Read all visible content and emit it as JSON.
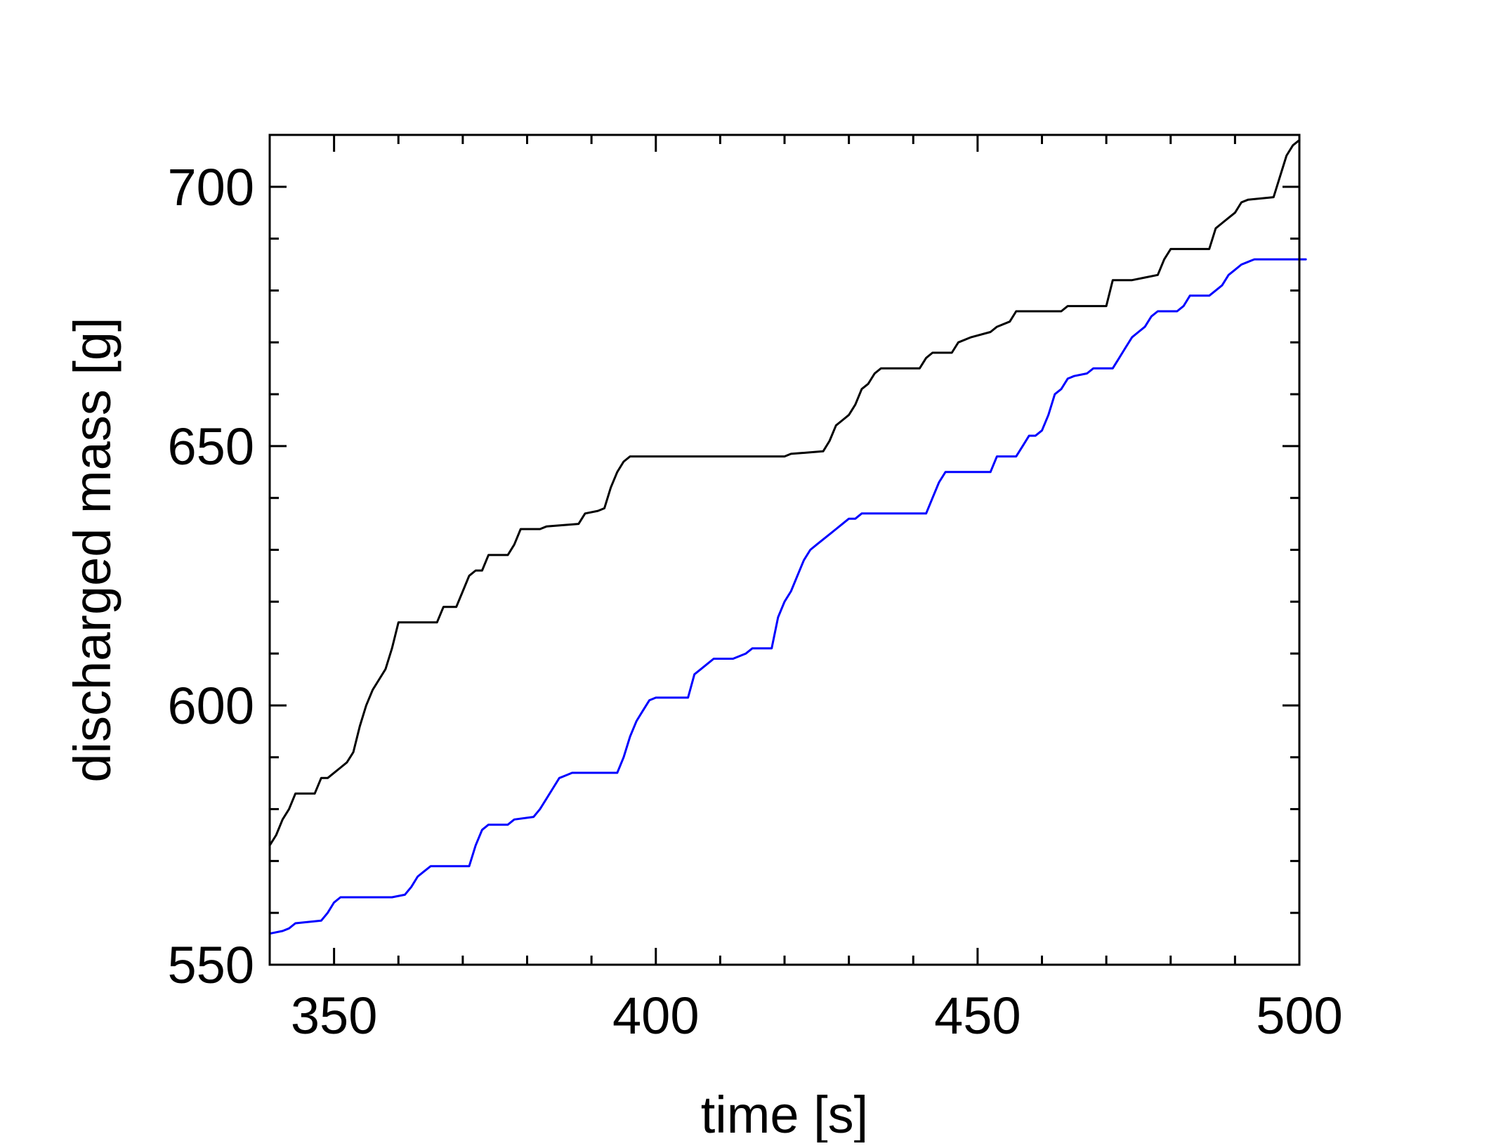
{
  "chart_data": {
    "type": "line",
    "title": "",
    "xlabel": "time [s]",
    "ylabel": "discharged mass [g]",
    "xlim": [
      340,
      500
    ],
    "ylim": [
      550,
      710
    ],
    "x_ticks": [
      350,
      400,
      450,
      500
    ],
    "x_tick_labels": [
      "350",
      "400",
      "450",
      "500"
    ],
    "y_ticks": [
      550,
      600,
      650,
      700
    ],
    "y_tick_labels": [
      "550",
      "600",
      "650",
      "700"
    ],
    "grid": false,
    "legend": "none",
    "series": [
      {
        "color": "#000000",
        "points": [
          [
            340,
            573
          ],
          [
            341,
            575
          ],
          [
            342,
            578
          ],
          [
            343,
            580
          ],
          [
            344,
            583
          ],
          [
            345,
            583
          ],
          [
            347,
            583
          ],
          [
            348,
            586
          ],
          [
            349,
            586
          ],
          [
            350,
            587
          ],
          [
            351,
            588
          ],
          [
            352,
            589
          ],
          [
            353,
            591
          ],
          [
            354,
            596
          ],
          [
            355,
            600
          ],
          [
            356,
            603
          ],
          [
            357,
            605
          ],
          [
            358,
            607
          ],
          [
            359,
            611
          ],
          [
            360,
            616
          ],
          [
            366,
            616
          ],
          [
            367,
            619
          ],
          [
            369,
            619
          ],
          [
            370,
            622
          ],
          [
            371,
            625
          ],
          [
            372,
            626
          ],
          [
            373,
            626
          ],
          [
            374,
            629
          ],
          [
            377,
            629
          ],
          [
            378,
            631
          ],
          [
            379,
            634
          ],
          [
            382,
            634
          ],
          [
            383,
            634.5
          ],
          [
            388,
            635
          ],
          [
            389,
            637
          ],
          [
            391,
            637.5
          ],
          [
            392,
            638
          ],
          [
            393,
            642
          ],
          [
            394,
            645
          ],
          [
            395,
            647
          ],
          [
            396,
            648
          ],
          [
            420,
            648
          ],
          [
            421,
            648.5
          ],
          [
            426,
            649
          ],
          [
            427,
            651
          ],
          [
            428,
            654
          ],
          [
            429,
            655
          ],
          [
            430,
            656
          ],
          [
            431,
            658
          ],
          [
            432,
            661
          ],
          [
            433,
            662
          ],
          [
            434,
            664
          ],
          [
            435,
            665
          ],
          [
            441,
            665
          ],
          [
            442,
            667
          ],
          [
            443,
            668
          ],
          [
            446,
            668
          ],
          [
            447,
            670
          ],
          [
            449,
            671
          ],
          [
            452,
            672
          ],
          [
            453,
            673
          ],
          [
            455,
            674
          ],
          [
            456,
            676
          ],
          [
            463,
            676
          ],
          [
            464,
            677
          ],
          [
            470,
            677
          ],
          [
            471,
            682
          ],
          [
            474,
            682
          ],
          [
            476,
            682.5
          ],
          [
            478,
            683
          ],
          [
            479,
            686
          ],
          [
            480,
            688
          ],
          [
            486,
            688
          ],
          [
            487,
            692
          ],
          [
            488,
            693
          ],
          [
            489,
            694
          ],
          [
            490,
            695
          ],
          [
            491,
            697
          ],
          [
            492,
            697.5
          ],
          [
            496,
            698
          ],
          [
            497,
            702
          ],
          [
            498,
            706
          ],
          [
            499,
            708
          ],
          [
            500,
            709
          ]
        ]
      },
      {
        "color": "#0000ff",
        "points": [
          [
            340,
            556
          ],
          [
            342,
            556.5
          ],
          [
            343,
            557
          ],
          [
            344,
            558
          ],
          [
            348,
            558.5
          ],
          [
            349,
            560
          ],
          [
            350,
            562
          ],
          [
            351,
            563
          ],
          [
            359,
            563
          ],
          [
            361,
            563.5
          ],
          [
            362,
            565
          ],
          [
            363,
            567
          ],
          [
            364,
            568
          ],
          [
            365,
            569
          ],
          [
            371,
            569
          ],
          [
            372,
            573
          ],
          [
            373,
            576
          ],
          [
            374,
            577
          ],
          [
            377,
            577
          ],
          [
            378,
            578
          ],
          [
            381,
            578.5
          ],
          [
            382,
            580
          ],
          [
            383,
            582
          ],
          [
            384,
            584
          ],
          [
            385,
            586
          ],
          [
            386,
            586.5
          ],
          [
            387,
            587
          ],
          [
            394,
            587
          ],
          [
            395,
            590
          ],
          [
            396,
            594
          ],
          [
            397,
            597
          ],
          [
            398,
            599
          ],
          [
            399,
            601
          ],
          [
            400,
            601.5
          ],
          [
            405,
            601.5
          ],
          [
            406,
            606
          ],
          [
            407,
            607
          ],
          [
            408,
            608
          ],
          [
            409,
            609
          ],
          [
            412,
            609
          ],
          [
            414,
            610
          ],
          [
            415,
            611
          ],
          [
            418,
            611
          ],
          [
            419,
            617
          ],
          [
            420,
            620
          ],
          [
            421,
            622
          ],
          [
            422,
            625
          ],
          [
            423,
            628
          ],
          [
            424,
            630
          ],
          [
            425,
            631
          ],
          [
            426,
            632
          ],
          [
            427,
            633
          ],
          [
            428,
            634
          ],
          [
            429,
            635
          ],
          [
            430,
            636
          ],
          [
            431,
            636
          ],
          [
            432,
            637
          ],
          [
            442,
            637
          ],
          [
            443,
            640
          ],
          [
            444,
            643
          ],
          [
            445,
            645
          ],
          [
            446,
            645
          ],
          [
            452,
            645
          ],
          [
            453,
            648
          ],
          [
            454,
            648
          ],
          [
            456,
            648
          ],
          [
            457,
            650
          ],
          [
            458,
            652
          ],
          [
            459,
            652
          ],
          [
            460,
            653
          ],
          [
            461,
            656
          ],
          [
            462,
            660
          ],
          [
            463,
            661
          ],
          [
            464,
            663
          ],
          [
            465,
            663.5
          ],
          [
            467,
            664
          ],
          [
            468,
            665
          ],
          [
            471,
            665
          ],
          [
            472,
            667
          ],
          [
            473,
            669
          ],
          [
            474,
            671
          ],
          [
            475,
            672
          ],
          [
            476,
            673
          ],
          [
            477,
            675
          ],
          [
            478,
            676
          ],
          [
            481,
            676
          ],
          [
            482,
            677
          ],
          [
            483,
            679
          ],
          [
            486,
            679
          ],
          [
            487,
            680
          ],
          [
            488,
            681
          ],
          [
            489,
            683
          ],
          [
            490,
            684
          ],
          [
            491,
            685
          ],
          [
            492,
            685.5
          ],
          [
            493,
            686
          ],
          [
            501,
            686
          ]
        ]
      }
    ]
  }
}
